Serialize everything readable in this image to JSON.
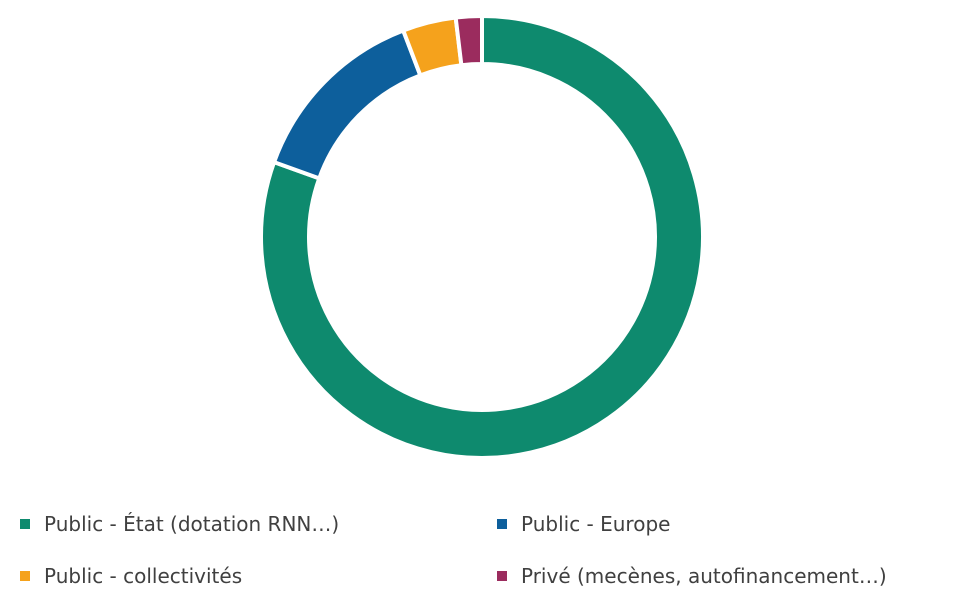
{
  "chart_data": {
    "type": "pie",
    "donut": true,
    "categories": [
      "Public - État (dotation RNN…)",
      "Public - Europe",
      "Public - collectivités",
      "Privé (mecènes, autofinancement…)"
    ],
    "values": [
      80.5,
      13.7,
      3.9,
      1.9
    ],
    "unit": "%",
    "colors": [
      "#0e8a6e",
      "#0d5f9c",
      "#f5a21c",
      "#9b2c5e"
    ],
    "legend_position": "bottom"
  },
  "legend": {
    "items": [
      {
        "label": "Public - État (dotation RNN…)",
        "color": "#0e8a6e"
      },
      {
        "label": "Public - Europe",
        "color": "#0d5f9c"
      },
      {
        "label": "Public - collectivités",
        "color": "#f5a21c"
      },
      {
        "label": "Privé (mecènes, autofinancement…)",
        "color": "#9b2c5e"
      }
    ]
  }
}
